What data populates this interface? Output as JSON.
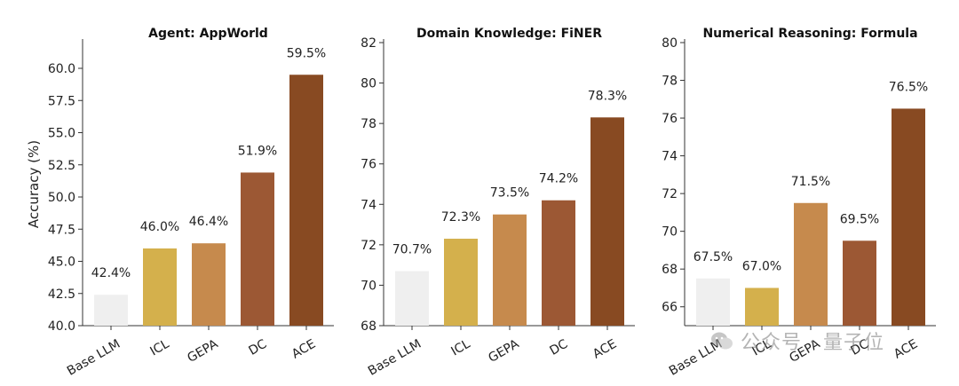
{
  "watermark": {
    "text": "公众号 · 量子位"
  },
  "chart_data": [
    {
      "type": "bar",
      "title": "Agent: AppWorld",
      "ylabel": "Accuracy (%)",
      "categories": [
        "Base LLM",
        "ICL",
        "GEPA",
        "DC",
        "ACE"
      ],
      "values": [
        42.4,
        46.0,
        46.4,
        51.9,
        59.5
      ],
      "value_labels": [
        "42.4%",
        "46.0%",
        "46.4%",
        "51.9%",
        "59.5%"
      ],
      "ylim": [
        40,
        62
      ],
      "yticks": [
        40.0,
        42.5,
        45.0,
        47.5,
        50.0,
        52.5,
        55.0,
        57.5,
        60.0
      ],
      "ytick_labels": [
        "40.0",
        "42.5",
        "45.0",
        "47.5",
        "50.0",
        "52.5",
        "55.0",
        "57.5",
        "60.0"
      ],
      "colors": [
        "#efefef",
        "#d4b04c",
        "#c68a4d",
        "#9c5834",
        "#884a22"
      ]
    },
    {
      "type": "bar",
      "title": "Domain Knowledge: FiNER",
      "ylabel": "",
      "categories": [
        "Base LLM",
        "ICL",
        "GEPA",
        "DC",
        "ACE"
      ],
      "values": [
        70.7,
        72.3,
        73.5,
        74.2,
        78.3
      ],
      "value_labels": [
        "70.7%",
        "72.3%",
        "73.5%",
        "74.2%",
        "78.3%"
      ],
      "ylim": [
        68,
        82
      ],
      "yticks": [
        68,
        70,
        72,
        74,
        76,
        78,
        80,
        82
      ],
      "ytick_labels": [
        "68",
        "70",
        "72",
        "74",
        "76",
        "78",
        "80",
        "82"
      ],
      "colors": [
        "#efefef",
        "#d4b04c",
        "#c68a4d",
        "#9c5834",
        "#884a22"
      ]
    },
    {
      "type": "bar",
      "title": "Numerical Reasoning: Formula",
      "ylabel": "",
      "categories": [
        "Base LLM",
        "ICL",
        "GEPA",
        "DC",
        "ACE"
      ],
      "values": [
        67.5,
        67.0,
        71.5,
        69.5,
        76.5
      ],
      "value_labels": [
        "67.5%",
        "67.0%",
        "71.5%",
        "69.5%",
        "76.5%"
      ],
      "ylim": [
        65,
        80
      ],
      "yticks": [
        66,
        68,
        70,
        72,
        74,
        76,
        78,
        80
      ],
      "ytick_labels": [
        "66",
        "68",
        "70",
        "72",
        "74",
        "76",
        "78",
        "80"
      ],
      "colors": [
        "#efefef",
        "#d4b04c",
        "#c68a4d",
        "#9c5834",
        "#884a22"
      ]
    }
  ]
}
